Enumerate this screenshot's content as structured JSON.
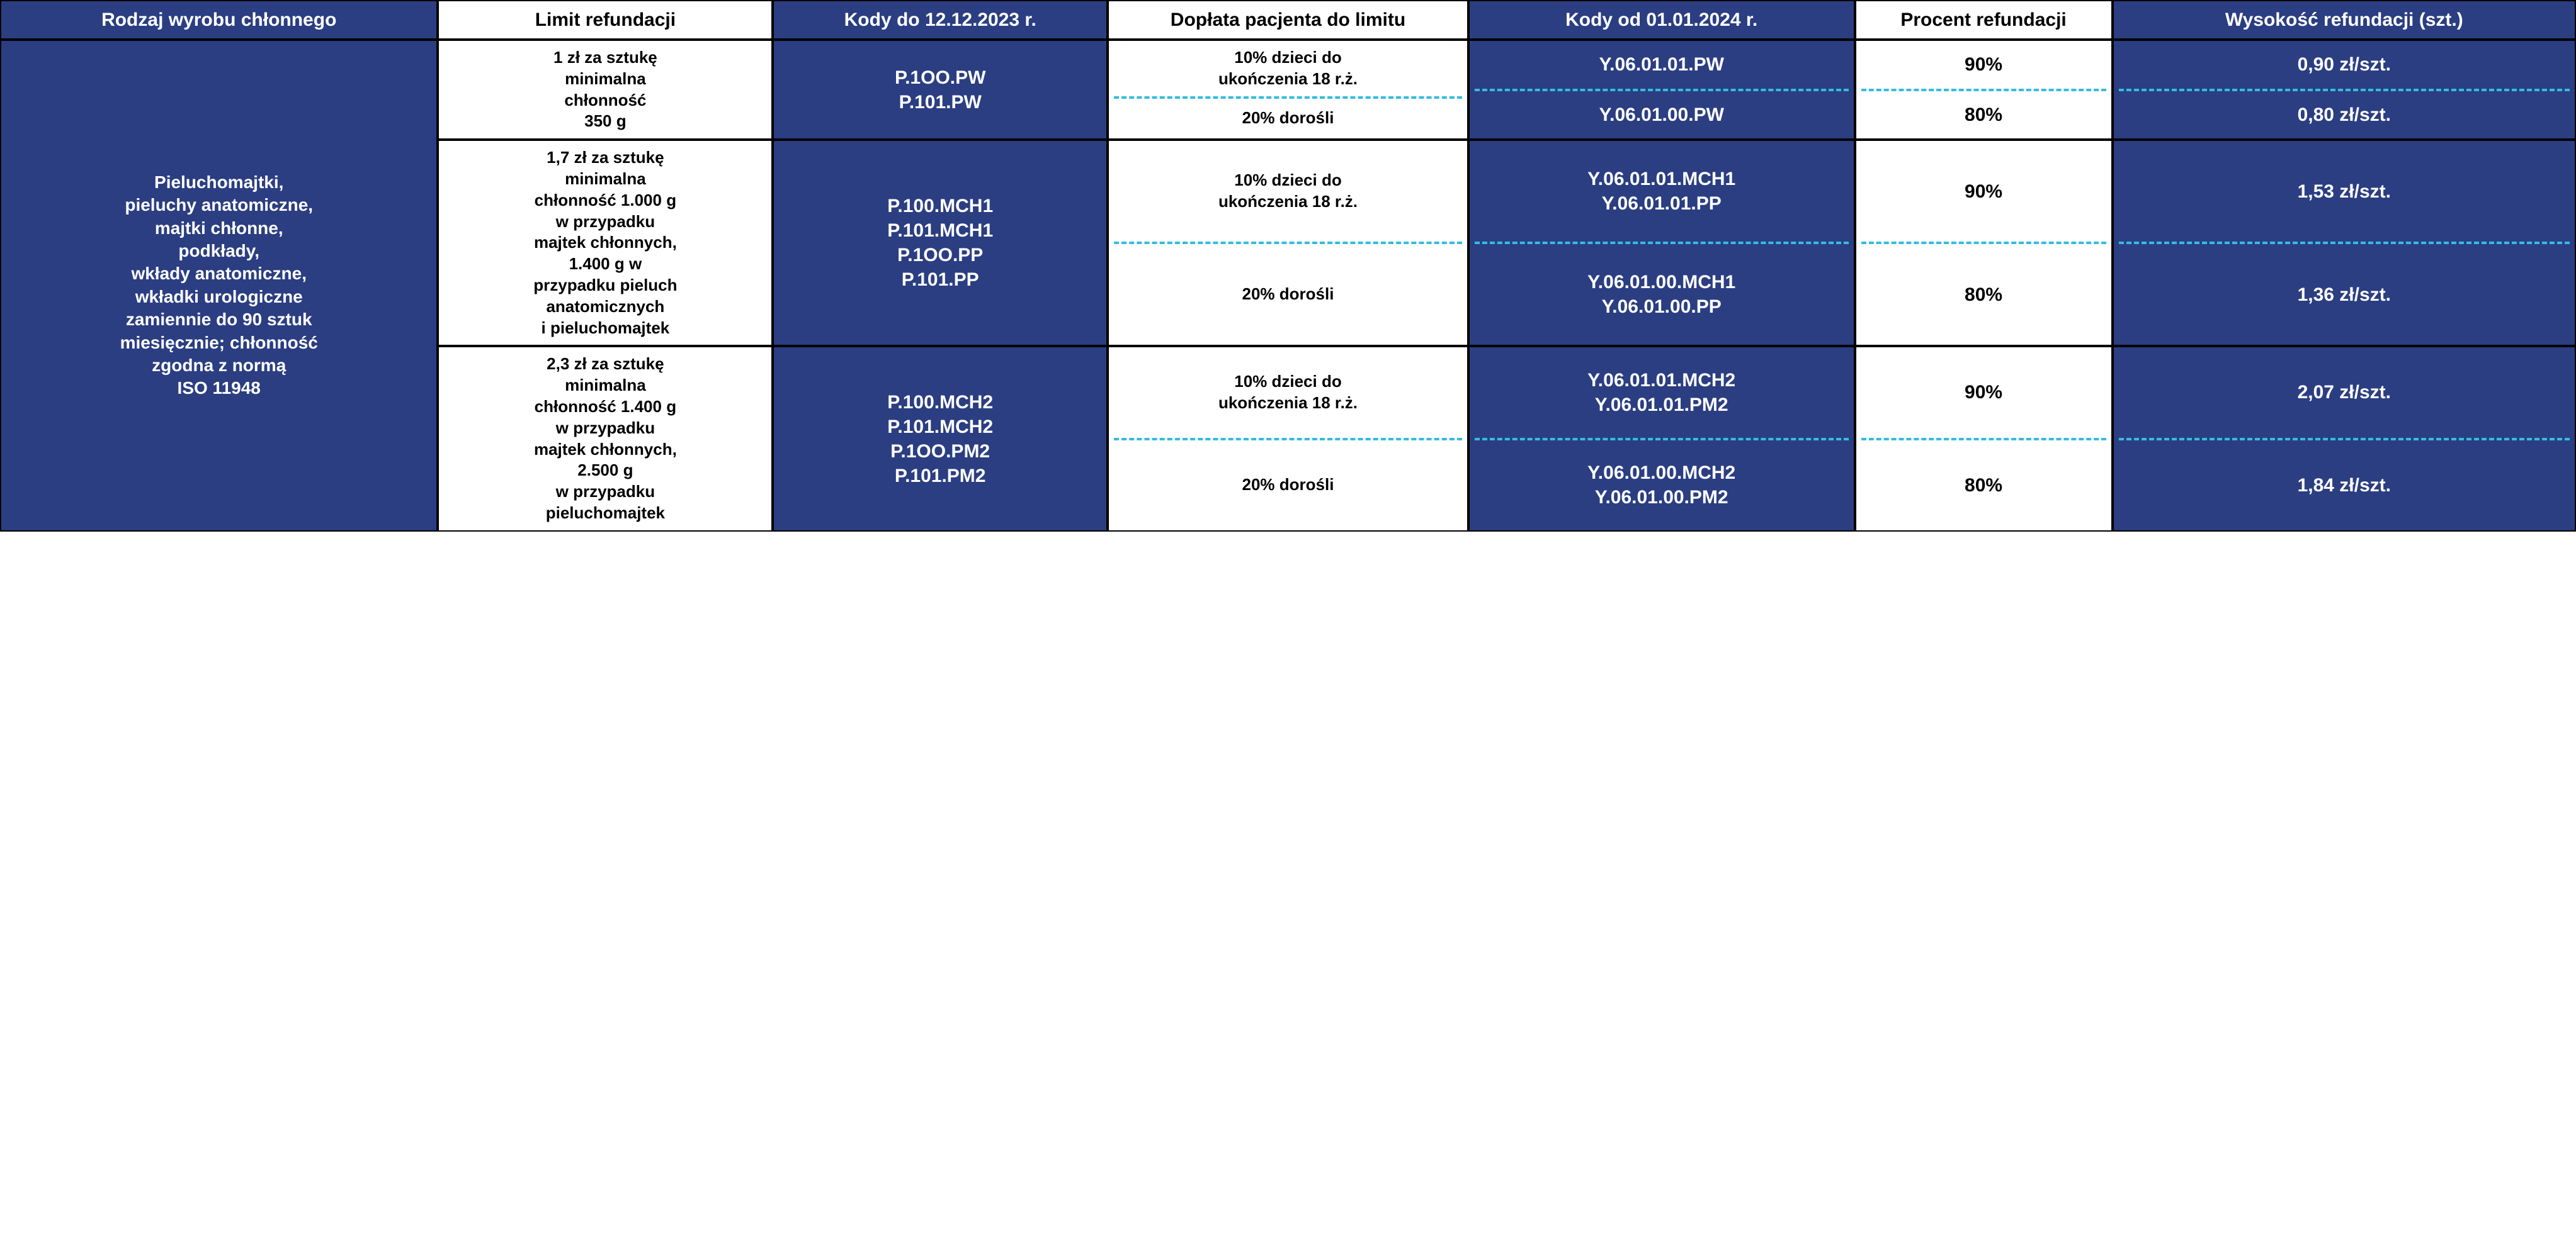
{
  "colors": {
    "blue_bg": "#2b3e82",
    "white_bg": "#ffffff",
    "black_border": "#000000",
    "dash": "#33bde0",
    "text_white": "#ffffff",
    "text_black": "#000000"
  },
  "header": {
    "c1": "Rodzaj wyrobu chłonnego",
    "c2": "Limit refundacji",
    "c3": "Kody do 12.12.2023 r.",
    "c4": "Dopłata pacjenta do limitu",
    "c5": "Kody od 01.01.2024 r.",
    "c6": "Procent refundacji",
    "c7": "Wysokość refundacji (szt.)"
  },
  "category": "Pieluchomajtki,\npieluchy anatomiczne,\nmajtki chłonne,\npodkłady,\nwkłady anatomiczne,\nwkładki urologiczne\nzamiennie do 90 sztuk\nmiesięcznie; chłonność\nzgodna z normą\nISO 11948",
  "rows": [
    {
      "limit": "1 zł za sztukę\nminimalna\nchłonność\n350 g",
      "codes_old": "P.1OO.PW\nP.101.PW",
      "sub": [
        {
          "doplata": "10% dzieci do\nukończenia 18 r.ż.",
          "codes_new": "Y.06.01.01.PW",
          "procent": "90%",
          "wysokosc": "0,90 zł/szt."
        },
        {
          "doplata": "20% dorośli",
          "codes_new": "Y.06.01.00.PW",
          "procent": "80%",
          "wysokosc": "0,80 zł/szt."
        }
      ]
    },
    {
      "limit": "1,7 zł za sztukę\nminimalna\nchłonność 1.000 g\nw przypadku\nmajtek chłonnych,\n1.400 g w\nprzypadku pieluch\nanatomicznych\ni pieluchomajtek",
      "codes_old": "P.100.MCH1\nP.101.MCH1\nP.1OO.PP\nP.101.PP",
      "sub": [
        {
          "doplata": "10% dzieci do\nukończenia 18 r.ż.",
          "codes_new": "Y.06.01.01.MCH1\nY.06.01.01.PP",
          "procent": "90%",
          "wysokosc": "1,53 zł/szt."
        },
        {
          "doplata": "20% dorośli",
          "codes_new": "Y.06.01.00.MCH1\nY.06.01.00.PP",
          "procent": "80%",
          "wysokosc": "1,36 zł/szt."
        }
      ]
    },
    {
      "limit": "2,3 zł za sztukę\nminimalna\nchłonność 1.400 g\nw przypadku\nmajtek chłonnych,\n2.500 g\nw przypadku\npieluchomajtek",
      "codes_old": "P.100.MCH2\nP.101.MCH2\nP.1OO.PM2\nP.101.PM2",
      "sub": [
        {
          "doplata": "10% dzieci do\nukończenia 18 r.ż.",
          "codes_new": "Y.06.01.01.MCH2\nY.06.01.01.PM2",
          "procent": "90%",
          "wysokosc": "2,07 zł/szt."
        },
        {
          "doplata": "20% dorośli",
          "codes_new": "Y.06.01.00.MCH2\nY.06.01.00.PM2",
          "procent": "80%",
          "wysokosc": "1,84 zł/szt."
        }
      ]
    }
  ]
}
